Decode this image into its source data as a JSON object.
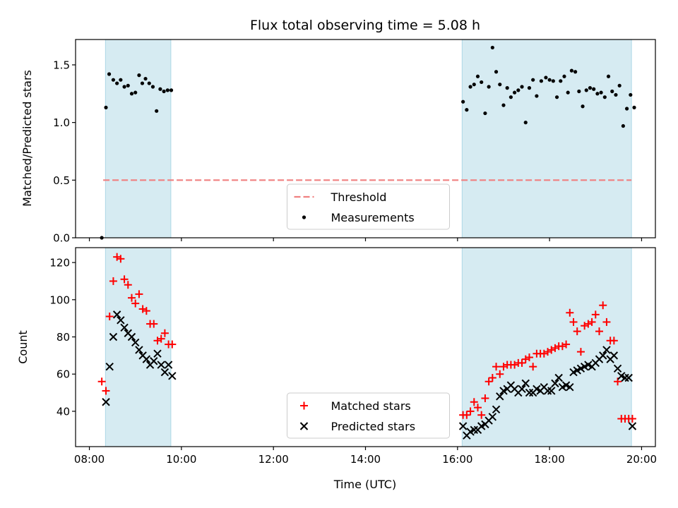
{
  "chart_data": [
    {
      "type": "scatter",
      "title": "Flux total observing time = 5.08 h",
      "ylabel": "Matched/Predicted stars",
      "ylim": [
        0,
        1.72
      ],
      "xlim_hours": [
        7.7,
        20.3
      ],
      "yticks": [
        "0.0",
        "0.5",
        "1.0",
        "1.5"
      ],
      "shaded_intervals_hours": [
        [
          8.35,
          9.77
        ],
        [
          16.1,
          19.78
        ]
      ],
      "shade_color": "#add8e6",
      "threshold": {
        "name": "Threshold",
        "value": 0.5,
        "color": "#f08080"
      },
      "legend": [
        "Threshold",
        "Measurements"
      ],
      "legend_position": "lower center",
      "series": [
        {
          "name": "Measurements",
          "color": "#000000",
          "marker": "dot",
          "x": [
            8.27,
            8.36,
            8.43,
            8.52,
            8.6,
            8.68,
            8.76,
            8.84,
            8.92,
            9.0,
            9.08,
            9.15,
            9.22,
            9.3,
            9.38,
            9.46,
            9.54,
            9.62,
            9.7,
            9.78,
            16.12,
            16.2,
            16.28,
            16.36,
            16.44,
            16.52,
            16.6,
            16.68,
            16.76,
            16.84,
            16.92,
            17.0,
            17.08,
            17.16,
            17.24,
            17.32,
            17.4,
            17.48,
            17.56,
            17.64,
            17.72,
            17.82,
            17.92,
            18.0,
            18.08,
            18.16,
            18.24,
            18.32,
            18.4,
            18.48,
            18.56,
            18.64,
            18.72,
            18.8,
            18.88,
            18.96,
            19.04,
            19.12,
            19.2,
            19.28,
            19.36,
            19.44,
            19.52,
            19.6,
            19.68,
            19.76,
            19.84
          ],
          "y": [
            0.0,
            1.13,
            1.42,
            1.37,
            1.34,
            1.37,
            1.31,
            1.32,
            1.25,
            1.26,
            1.41,
            1.34,
            1.38,
            1.34,
            1.31,
            1.1,
            1.29,
            1.27,
            1.28,
            1.28,
            1.18,
            1.11,
            1.31,
            1.33,
            1.4,
            1.35,
            1.08,
            1.31,
            1.65,
            1.44,
            1.33,
            1.15,
            1.3,
            1.22,
            1.26,
            1.28,
            1.31,
            1.0,
            1.3,
            1.37,
            1.23,
            1.36,
            1.39,
            1.37,
            1.36,
            1.22,
            1.36,
            1.4,
            1.26,
            1.45,
            1.44,
            1.27,
            1.14,
            1.28,
            1.3,
            1.29,
            1.25,
            1.26,
            1.22,
            1.4,
            1.27,
            1.24,
            1.32,
            0.97,
            1.12,
            1.24,
            1.13
          ]
        }
      ]
    },
    {
      "type": "scatter",
      "xlabel": "Time (UTC)",
      "ylabel": "Count",
      "ylim": [
        21,
        128
      ],
      "xlim_hours": [
        7.7,
        20.3
      ],
      "yticks": [
        "40",
        "60",
        "80",
        "100",
        "120"
      ],
      "xticks": [
        "08:00",
        "10:00",
        "12:00",
        "14:00",
        "16:00",
        "18:00",
        "20:00"
      ],
      "shaded_intervals_hours": [
        [
          8.35,
          9.77
        ],
        [
          16.1,
          19.78
        ]
      ],
      "shade_color": "#add8e6",
      "legend": [
        "Matched stars",
        "Predicted stars"
      ],
      "legend_position": "lower center",
      "series": [
        {
          "name": "Matched stars",
          "color": "#ff0000",
          "marker": "plus",
          "x": [
            8.27,
            8.36,
            8.44,
            8.52,
            8.6,
            8.68,
            8.76,
            8.84,
            8.92,
            9.0,
            9.08,
            9.16,
            9.24,
            9.32,
            9.4,
            9.48,
            9.56,
            9.64,
            9.72,
            9.8,
            16.12,
            16.2,
            16.28,
            16.36,
            16.44,
            16.52,
            16.6,
            16.68,
            16.76,
            16.84,
            16.92,
            17.0,
            17.08,
            17.16,
            17.24,
            17.32,
            17.4,
            17.48,
            17.56,
            17.64,
            17.72,
            17.8,
            17.88,
            17.96,
            18.04,
            18.12,
            18.2,
            18.28,
            18.36,
            18.44,
            18.52,
            18.6,
            18.68,
            18.76,
            18.84,
            18.92,
            19.0,
            19.08,
            19.16,
            19.24,
            19.32,
            19.4,
            19.48,
            19.56,
            19.64,
            19.72,
            19.8
          ],
          "y": [
            56,
            51,
            91,
            110,
            123,
            122,
            111,
            108,
            101,
            98,
            103,
            95,
            94,
            87,
            87,
            78,
            79,
            82,
            76,
            76,
            38,
            38,
            40,
            45,
            42,
            38,
            47,
            56,
            58,
            64,
            60,
            64,
            65,
            65,
            65,
            66,
            66,
            68,
            69,
            64,
            71,
            71,
            71,
            72,
            73,
            74,
            75,
            75,
            76,
            93,
            88,
            83,
            72,
            86,
            87,
            88,
            92,
            83,
            97,
            88,
            78,
            78,
            56,
            36,
            36,
            36,
            36
          ]
        },
        {
          "name": "Predicted stars",
          "color": "#000000",
          "marker": "x",
          "x": [
            8.36,
            8.44,
            8.52,
            8.6,
            8.68,
            8.76,
            8.84,
            8.92,
            9.0,
            9.08,
            9.16,
            9.24,
            9.32,
            9.4,
            9.48,
            9.56,
            9.64,
            9.72,
            9.8,
            16.12,
            16.2,
            16.28,
            16.36,
            16.44,
            16.52,
            16.6,
            16.68,
            16.76,
            16.84,
            16.92,
            17.0,
            17.08,
            17.16,
            17.24,
            17.32,
            17.4,
            17.48,
            17.56,
            17.64,
            17.72,
            17.8,
            17.88,
            17.96,
            18.04,
            18.12,
            18.2,
            18.28,
            18.36,
            18.44,
            18.52,
            18.6,
            18.68,
            18.76,
            18.84,
            18.92,
            19.0,
            19.08,
            19.16,
            19.24,
            19.32,
            19.4,
            19.48,
            19.56,
            19.64,
            19.72,
            19.8
          ],
          "y": [
            45,
            64,
            80,
            92,
            89,
            85,
            82,
            80,
            77,
            73,
            70,
            68,
            65,
            67,
            71,
            65,
            61,
            65,
            59,
            32,
            27,
            29,
            30,
            30,
            32,
            33,
            35,
            37,
            41,
            48,
            51,
            52,
            54,
            52,
            50,
            52,
            55,
            50,
            50,
            52,
            51,
            53,
            51,
            51,
            55,
            58,
            53,
            54,
            53,
            61,
            62,
            63,
            64,
            65,
            64,
            66,
            68,
            70,
            73,
            68,
            70,
            63,
            59,
            58,
            58,
            32
          ]
        }
      ]
    }
  ]
}
